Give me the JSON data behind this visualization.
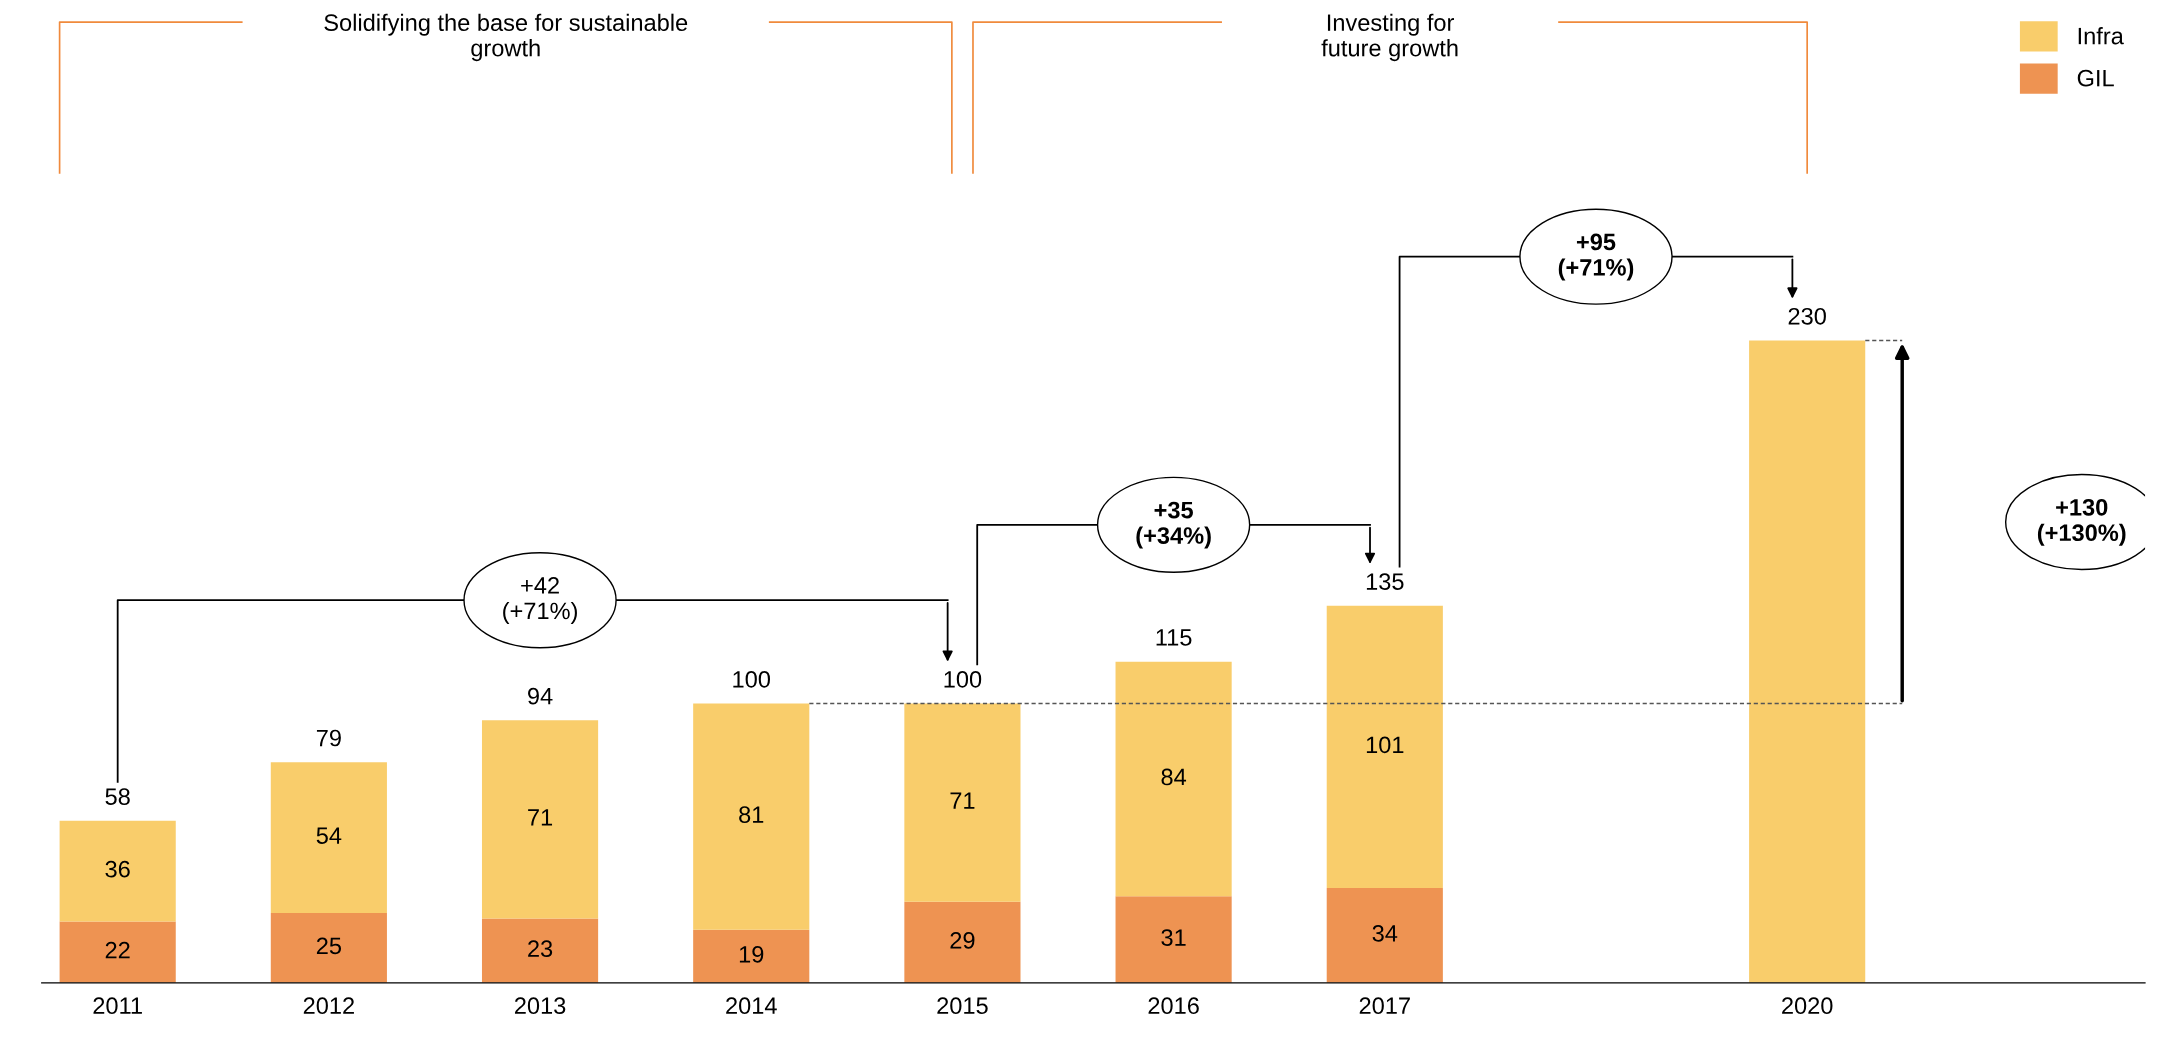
{
  "chart_data": {
    "type": "bar",
    "stacked": true,
    "categories": [
      "2011",
      "2012",
      "2013",
      "2014",
      "2015",
      "2016",
      "2017",
      null,
      "2020"
    ],
    "series": [
      {
        "name": "GIL",
        "color": "#ee9352",
        "values": [
          22,
          25,
          23,
          19,
          29,
          31,
          34,
          null,
          null
        ],
        "value_labels": [
          "22",
          "25",
          "23",
          "19",
          "29",
          "31",
          "34",
          null,
          null
        ]
      },
      {
        "name": "Infra",
        "color": "#f9cd6b",
        "values": [
          36,
          54,
          71,
          81,
          71,
          84,
          101,
          null,
          230
        ],
        "value_labels": [
          "36",
          "54",
          "71",
          "81",
          "71",
          "84",
          "101",
          null,
          null
        ]
      }
    ],
    "totals": [
      "58",
      "79",
      "94",
      "100",
      "100",
      "115",
      "135",
      null,
      "230"
    ],
    "tick_labels": "x",
    "grid": false,
    "legend": "top right",
    "ref_lines": [
      {
        "axis": "y",
        "value": 100,
        "line_style": "dashed",
        "color": "#555555"
      }
    ],
    "annotations": [
      "+42\n(+71%)",
      "+35\n(+34%)",
      "+95\n(+71%)",
      "+130\n(+130%)",
      "Solidifying the base for sustainable\ngrowth",
      "Investing for\nfuture growth"
    ]
  }
}
